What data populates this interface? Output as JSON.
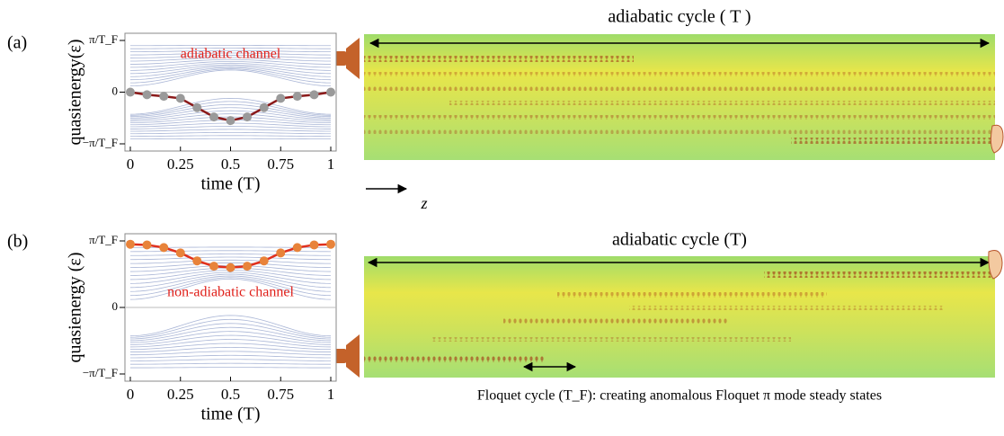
{
  "chart_data": [
    {
      "type": "line",
      "panel_label": "(a)",
      "annotation": "adiabatic channel",
      "ylabel": "quasienergy(ε)",
      "xlabel": "time (T)",
      "x": [
        0,
        0.083,
        0.167,
        0.25,
        0.333,
        0.417,
        0.5,
        0.583,
        0.667,
        0.75,
        0.833,
        0.917,
        1
      ],
      "series": [
        {
          "color": "#8b1a1a",
          "marker_color": "#9a9a9a",
          "values": [
            0,
            -0.05,
            -0.08,
            -0.12,
            -0.3,
            -0.48,
            -0.55,
            -0.48,
            -0.3,
            -0.12,
            -0.08,
            -0.05,
            0
          ]
        }
      ],
      "xlim": [
        0,
        1
      ],
      "ylim": [
        -1,
        1
      ],
      "xticks": [
        0,
        0.25,
        0.5,
        0.75,
        1
      ],
      "yticks": [
        {
          "value": -1,
          "label": "−π/T_F"
        },
        0,
        {
          "value": 1,
          "label": "π/T_F"
        }
      ]
    },
    {
      "type": "line",
      "panel_label": "(b)",
      "annotation": "non-adiabatic channel",
      "ylabel": "quasienergy (ε)",
      "xlabel": "time (T)",
      "x": [
        0,
        0.083,
        0.167,
        0.25,
        0.333,
        0.417,
        0.5,
        0.583,
        0.667,
        0.75,
        0.833,
        0.917,
        1
      ],
      "series": [
        {
          "color": "#e0301e",
          "marker_color": "#e8833a",
          "values": [
            0.95,
            0.94,
            0.9,
            0.82,
            0.7,
            0.62,
            0.6,
            0.62,
            0.7,
            0.82,
            0.9,
            0.94,
            0.95
          ]
        }
      ],
      "xlim": [
        0,
        1
      ],
      "ylim": [
        -1,
        1
      ],
      "xticks": [
        0,
        0.25,
        0.5,
        0.75,
        1
      ],
      "yticks": [
        {
          "value": -1,
          "label": "−π/T_F"
        },
        0,
        {
          "value": 1,
          "label": "π/T_F"
        }
      ]
    }
  ],
  "panels": [
    {
      "title": "adiabatic cycle ( T )",
      "axis_label": "z"
    },
    {
      "title": "adiabatic cycle (T)",
      "caption": "Floquet cycle (T_F): creating anomalous Floquet π mode steady states"
    }
  ]
}
